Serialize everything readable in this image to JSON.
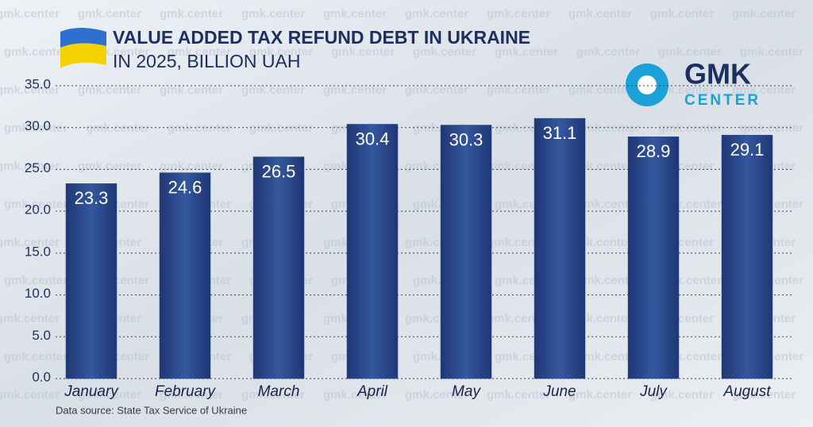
{
  "chart_data": {
    "type": "bar",
    "title": "VALUE ADDED TAX REFUND DEBT IN UKRAINE",
    "subtitle": "IN 2025, BILLION UAH",
    "source": "Data source: State Tax Service of Ukraine",
    "logo": [
      "GMK",
      "CENTER"
    ],
    "watermark": "gmk.center",
    "categories": [
      "January",
      "February",
      "March",
      "April",
      "May",
      "June",
      "July",
      "August"
    ],
    "values": [
      23.3,
      24.6,
      26.5,
      30.4,
      30.3,
      31.1,
      28.9,
      29.1
    ],
    "color": "#2a4a9c",
    "ylim": [
      0,
      35
    ],
    "yticks": [
      {
        "value": 0,
        "label": "0.0"
      },
      {
        "value": 5,
        "label": "5.0"
      },
      {
        "value": 10,
        "label": "10.0"
      },
      {
        "value": 15,
        "label": "15.0"
      },
      {
        "value": 20,
        "label": "20.0"
      },
      {
        "value": 25,
        "label": "25.0"
      },
      {
        "value": 30,
        "label": "30.0"
      },
      {
        "value": 35,
        "label": "35.0"
      }
    ],
    "grid": true
  }
}
